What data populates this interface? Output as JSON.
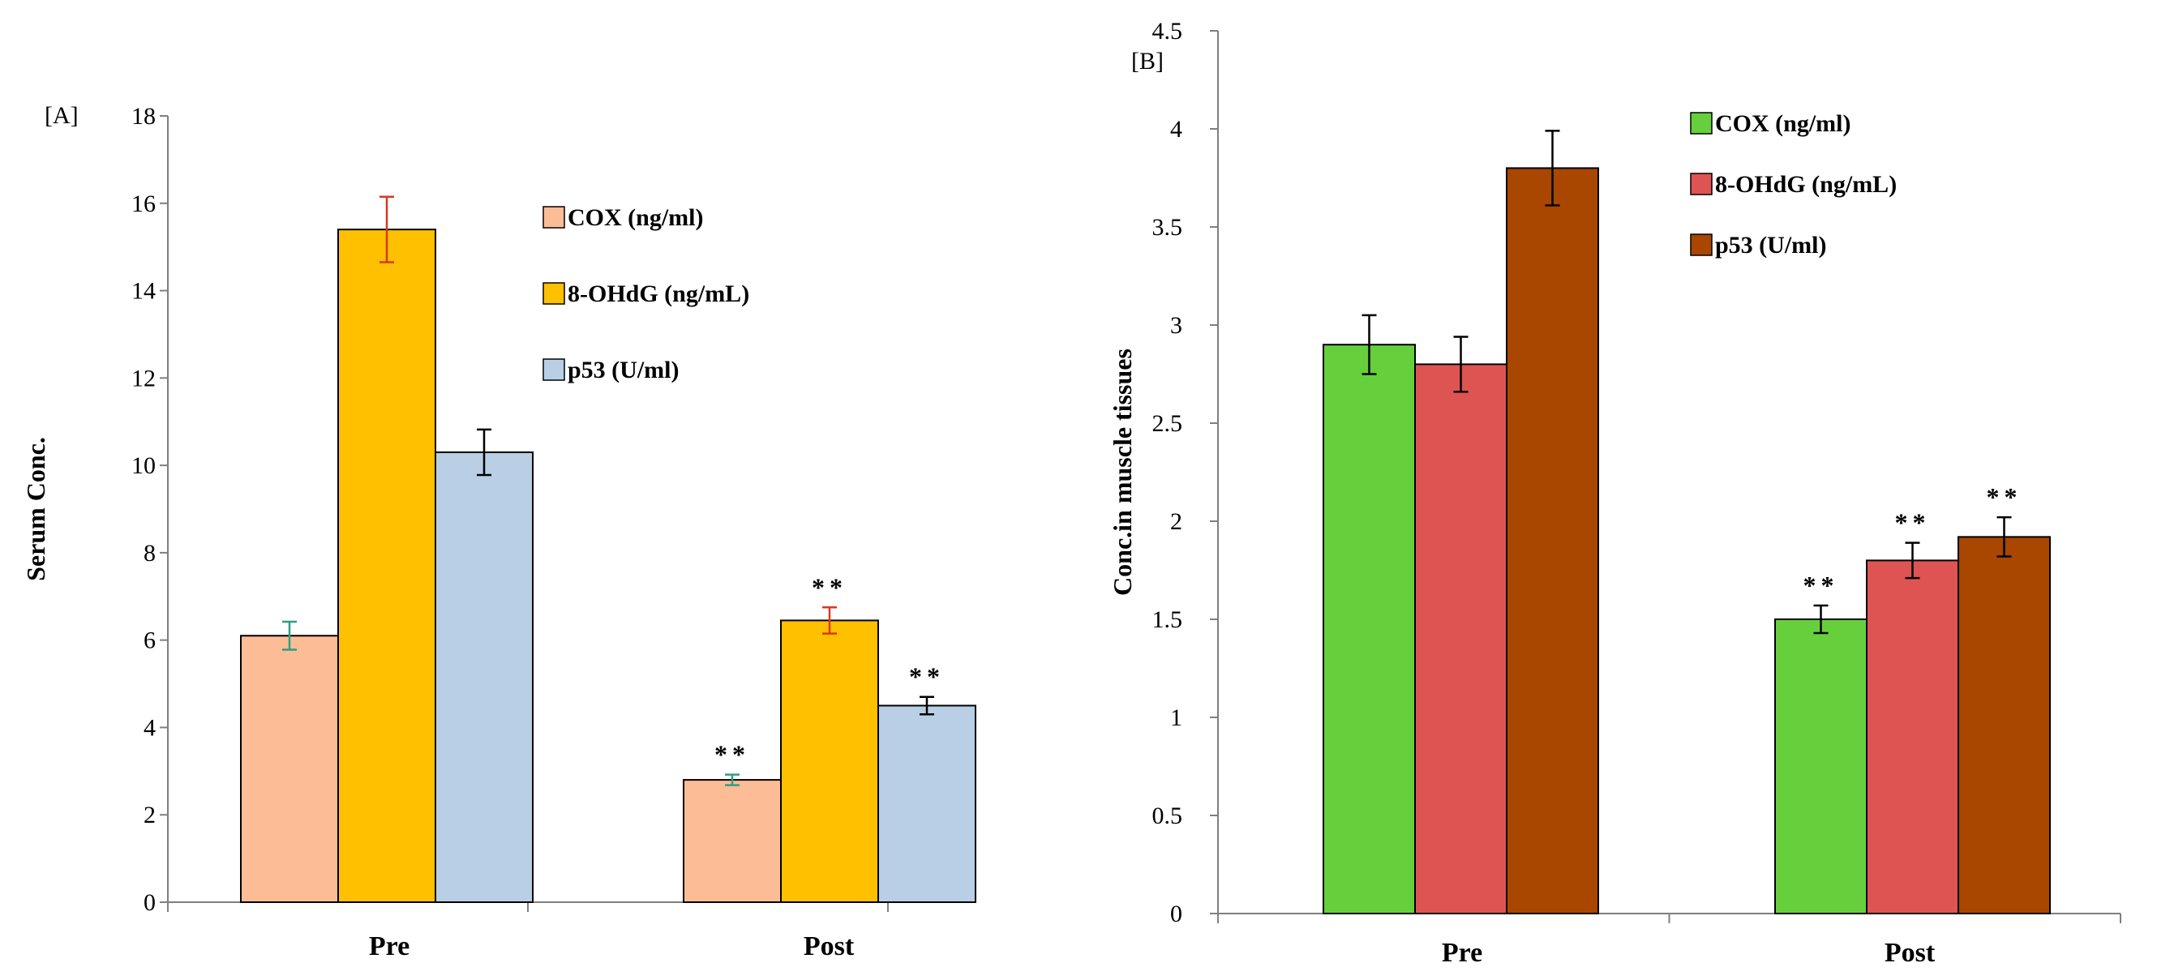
{
  "chart_data": [
    {
      "type": "bar",
      "panel_label": "[A]",
      "ylabel": "Serum Conc.",
      "xlabel": "",
      "ylim": [
        0,
        18
      ],
      "y_ticks": [
        "0",
        "2",
        "4",
        "6",
        "8",
        "10",
        "12",
        "14",
        "16",
        "18"
      ],
      "categories": [
        "Pre",
        "Post"
      ],
      "grid": false,
      "legend_position": "upper-right",
      "series": [
        {
          "name": "COX (ng/ml)",
          "values": [
            6.1,
            2.8
          ],
          "errors": [
            0.32,
            0.12
          ],
          "color": "#fcbd96",
          "error_color": "#2e9e82",
          "significance": [
            "",
            "**"
          ]
        },
        {
          "name": "8-OHdG (ng/mL)",
          "values": [
            15.4,
            6.45
          ],
          "errors": [
            0.75,
            0.3
          ],
          "color": "#ffc000",
          "error_color": "#d9381e",
          "significance": [
            "",
            "**"
          ]
        },
        {
          "name": "p53 (U/ml)",
          "values": [
            10.3,
            4.5
          ],
          "errors": [
            0.52,
            0.2
          ],
          "color": "#b8cfe5",
          "error_color": "#000000",
          "significance": [
            "",
            "**"
          ]
        }
      ]
    },
    {
      "type": "bar",
      "panel_label": "[B]",
      "ylabel": "Conc.in muscle tissues",
      "xlabel": "",
      "ylim": [
        0,
        4.5
      ],
      "y_ticks": [
        "0",
        "0.5",
        "1",
        "1.5",
        "2",
        "2.5",
        "3",
        "3.5",
        "4",
        "4.5"
      ],
      "categories": [
        "Pre",
        "Post"
      ],
      "grid": false,
      "legend_position": "upper-right",
      "series": [
        {
          "name": "COX (ng/ml)",
          "values": [
            2.9,
            1.5
          ],
          "errors": [
            0.15,
            0.07
          ],
          "color": "#66d03c",
          "error_color": "#000000",
          "significance": [
            "",
            "**"
          ]
        },
        {
          "name": "8-OHdG (ng/mL)",
          "values": [
            2.8,
            1.8
          ],
          "errors": [
            0.14,
            0.09
          ],
          "color": "#de5453",
          "error_color": "#000000",
          "significance": [
            "",
            "**"
          ]
        },
        {
          "name": "p53 (U/ml)",
          "values": [
            3.8,
            1.92
          ],
          "errors": [
            0.19,
            0.1
          ],
          "color": "#a94600",
          "error_color": "#000000",
          "significance": [
            "",
            "**"
          ]
        }
      ]
    }
  ]
}
